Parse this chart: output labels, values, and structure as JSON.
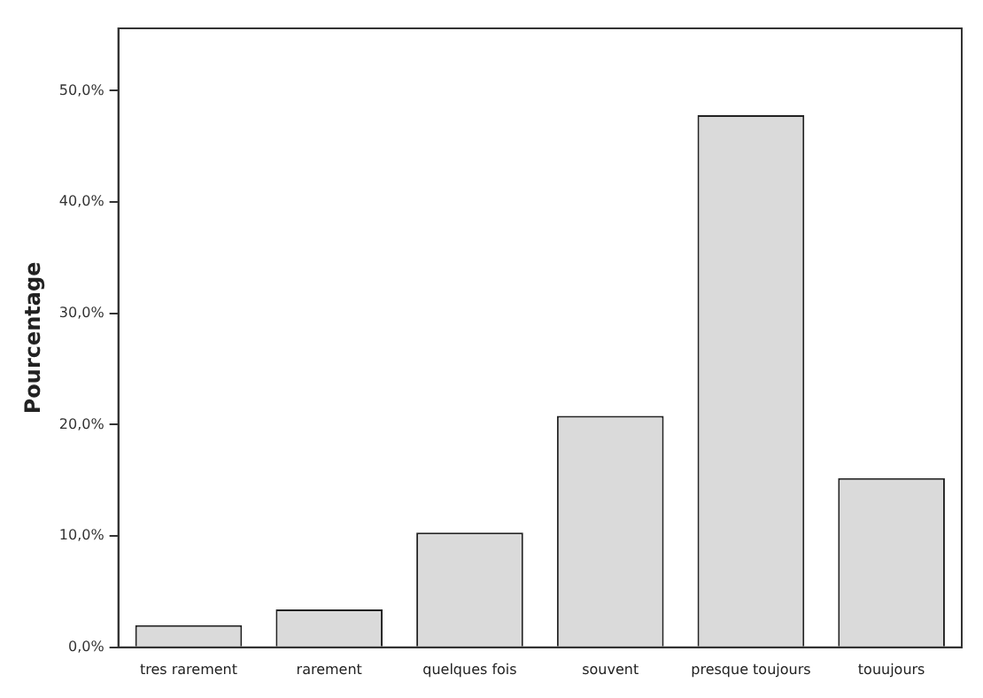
{
  "chart_data": {
    "type": "bar",
    "ylabel": "Pourcentage",
    "categories": [
      "tres rarement",
      "rarement",
      "quelques fois",
      "souvent",
      "presque toujours",
      "touujours"
    ],
    "values": [
      2.0,
      3.4,
      10.3,
      20.8,
      47.8,
      15.2
    ],
    "color": "#dadada",
    "ylim": [
      0,
      55.6
    ],
    "yticks": [
      {
        "value": 0,
        "label": "0,0%"
      },
      {
        "value": 10,
        "label": "10,0%"
      },
      {
        "value": 20,
        "label": "20,0%"
      },
      {
        "value": 30,
        "label": "30,0%"
      },
      {
        "value": 40,
        "label": "40,0%"
      },
      {
        "value": 50,
        "label": "50,0%"
      }
    ],
    "grid": false,
    "legend": false
  }
}
